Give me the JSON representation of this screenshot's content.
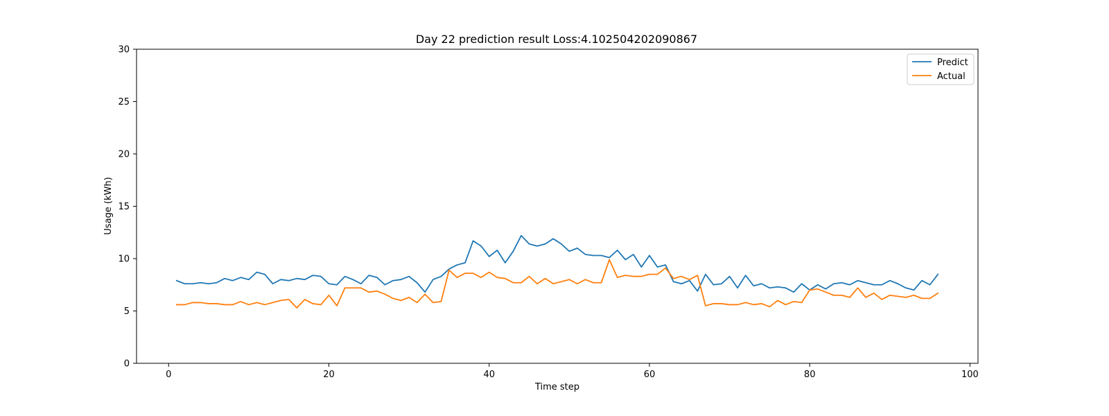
{
  "chart_data": {
    "type": "line",
    "title": "Day 22 prediction result Loss:4.102504202090867",
    "xlabel": "Time step",
    "ylabel": "Usage (kWh)",
    "xlim": [
      -4,
      101
    ],
    "ylim": [
      0,
      30
    ],
    "xticks": [
      0,
      20,
      40,
      60,
      80,
      100
    ],
    "yticks": [
      0,
      5,
      10,
      15,
      20,
      25,
      30
    ],
    "grid": false,
    "legend_position": "top-right",
    "x": [
      1,
      2,
      3,
      4,
      5,
      6,
      7,
      8,
      9,
      10,
      11,
      12,
      13,
      14,
      15,
      16,
      17,
      18,
      19,
      20,
      21,
      22,
      23,
      24,
      25,
      26,
      27,
      28,
      29,
      30,
      31,
      32,
      33,
      34,
      35,
      36,
      37,
      38,
      39,
      40,
      41,
      42,
      43,
      44,
      45,
      46,
      47,
      48,
      49,
      50,
      51,
      52,
      53,
      54,
      55,
      56,
      57,
      58,
      59,
      60,
      61,
      62,
      63,
      64,
      65,
      66,
      67,
      68,
      69,
      70,
      71,
      72,
      73,
      74,
      75,
      76,
      77,
      78,
      79,
      80,
      81,
      82,
      83,
      84,
      85,
      86,
      87,
      88,
      89,
      90,
      91,
      92,
      93,
      94,
      95,
      96
    ],
    "series": [
      {
        "name": "Predict",
        "color": "#1f77b4",
        "values": [
          7.9,
          7.6,
          7.6,
          7.7,
          7.6,
          7.7,
          8.1,
          7.9,
          8.2,
          8.0,
          8.7,
          8.5,
          7.6,
          8.0,
          7.9,
          8.1,
          8.0,
          8.4,
          8.3,
          7.6,
          7.5,
          8.3,
          8.0,
          7.6,
          8.4,
          8.2,
          7.5,
          7.9,
          8.0,
          8.3,
          7.7,
          6.8,
          8.0,
          8.3,
          9.0,
          9.4,
          9.6,
          11.7,
          11.2,
          10.2,
          10.8,
          9.6,
          10.7,
          12.2,
          11.4,
          11.2,
          11.4,
          11.9,
          11.4,
          10.7,
          11.0,
          10.4,
          10.3,
          10.3,
          10.1,
          10.8,
          9.9,
          10.4,
          9.2,
          10.3,
          9.2,
          9.4,
          7.8,
          7.6,
          7.9,
          6.9,
          8.5,
          7.5,
          7.6,
          8.3,
          7.2,
          8.4,
          7.4,
          7.6,
          7.2,
          7.3,
          7.2,
          6.8,
          7.6,
          7.0,
          7.5,
          7.1,
          7.6,
          7.7,
          7.5,
          7.9,
          7.7,
          7.5,
          7.5,
          7.9,
          7.6,
          7.2,
          7.0,
          7.9,
          7.5,
          8.5
        ]
      },
      {
        "name": "Actual",
        "color": "#ff7f0e",
        "values": [
          5.6,
          5.6,
          5.8,
          5.8,
          5.7,
          5.7,
          5.6,
          5.6,
          5.9,
          5.6,
          5.8,
          5.6,
          5.8,
          6.0,
          6.1,
          5.3,
          6.1,
          5.7,
          5.6,
          6.5,
          5.5,
          7.2,
          7.2,
          7.2,
          6.8,
          6.9,
          6.6,
          6.2,
          6.0,
          6.3,
          5.8,
          6.6,
          5.8,
          5.9,
          8.9,
          8.2,
          8.6,
          8.6,
          8.2,
          8.7,
          8.2,
          8.1,
          7.7,
          7.7,
          8.3,
          7.6,
          8.1,
          7.6,
          7.8,
          8.0,
          7.6,
          8.0,
          7.7,
          7.7,
          9.9,
          8.2,
          8.4,
          8.3,
          8.3,
          8.5,
          8.5,
          9.1,
          8.1,
          8.3,
          8.0,
          8.4,
          5.5,
          5.7,
          5.7,
          5.6,
          5.6,
          5.8,
          5.6,
          5.7,
          5.4,
          6.0,
          5.6,
          5.9,
          5.8,
          7.0,
          7.1,
          6.8,
          6.5,
          6.5,
          6.3,
          7.2,
          6.3,
          6.7,
          6.1,
          6.5,
          6.4,
          6.3,
          6.5,
          6.2,
          6.2,
          6.7
        ]
      }
    ]
  }
}
